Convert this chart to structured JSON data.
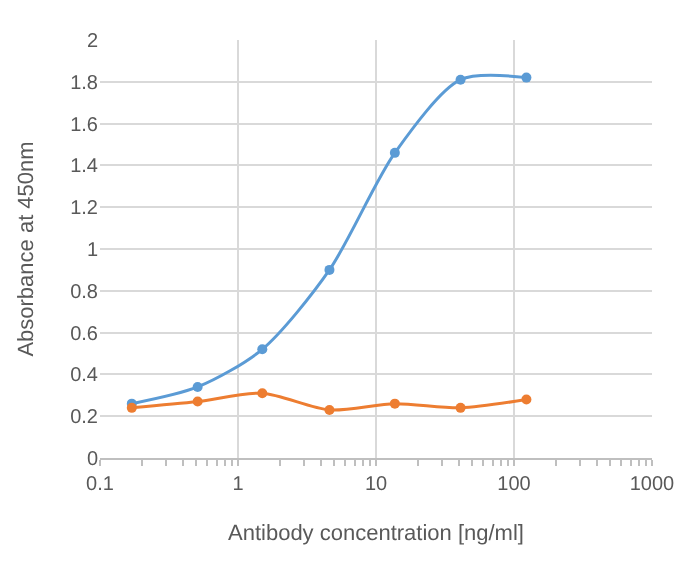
{
  "chart_data": {
    "type": "line",
    "xlabel": "Antibody concentration [ng/ml]",
    "ylabel": "Absorbance at 450nm",
    "x": [
      0.17,
      0.51,
      1.5,
      4.6,
      13.7,
      41,
      123
    ],
    "series": [
      {
        "color": "#5b9bd5",
        "values": [
          0.26,
          0.34,
          0.52,
          0.9,
          1.46,
          1.81,
          1.82
        ]
      },
      {
        "color": "#ed7d31",
        "values": [
          0.24,
          0.27,
          0.31,
          0.23,
          0.26,
          0.24,
          0.28
        ]
      }
    ],
    "log": "x",
    "xlim": [
      0.1,
      1000
    ],
    "xticks": [
      0.1,
      1,
      10,
      100,
      1000
    ],
    "ylim": [
      0,
      2
    ],
    "yticks": [
      0,
      0.2,
      0.4,
      0.6,
      0.8,
      1,
      1.2,
      1.4,
      1.6,
      1.8,
      2
    ],
    "grid": true,
    "marker": "circle",
    "line_style": "solid"
  }
}
